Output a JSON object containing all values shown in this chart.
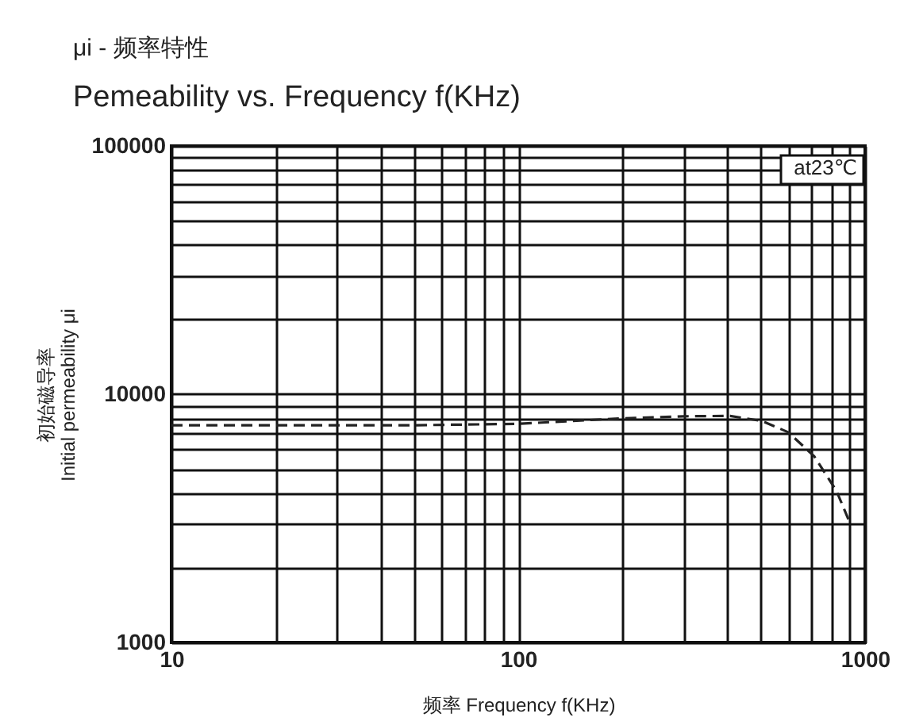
{
  "chart_data": {
    "type": "line",
    "title": "μi - 频率特性",
    "subtitle": "Pemeability vs. Frequency f(KHz)",
    "xlabel": "频率 Frequency f(KHz)",
    "ylabel": "初始磁导率\nInitial permeability μi",
    "annotations": [
      "at23℃"
    ],
    "x": [
      10,
      20,
      50,
      100,
      200,
      300,
      408,
      505,
      600,
      713,
      827,
      900
    ],
    "series": [
      {
        "color": "#222222",
        "values": [
          7500,
          7500,
          7500,
          7600,
          8000,
          8150,
          8180,
          7800,
          7030,
          5630,
          4080,
          3080
        ]
      }
    ],
    "log": "xy",
    "line_style": "dashed",
    "marker": "none",
    "grid": true,
    "xlim": [
      10,
      1000
    ],
    "xticks": [
      10,
      {
        "value": 20,
        "label": null
      },
      {
        "value": 30,
        "label": null
      },
      {
        "value": 40,
        "label": null
      },
      {
        "value": 50,
        "label": null
      },
      {
        "value": 60,
        "label": null
      },
      {
        "value": 70,
        "label": null
      },
      {
        "value": 80,
        "label": null
      },
      {
        "value": 90,
        "label": null
      },
      100,
      {
        "value": 200,
        "label": null
      },
      {
        "value": 300,
        "label": null
      },
      {
        "value": 400,
        "label": null
      },
      {
        "value": 500,
        "label": null
      },
      {
        "value": 600,
        "label": null
      },
      {
        "value": 700,
        "label": null
      },
      {
        "value": 800,
        "label": null
      },
      {
        "value": 900,
        "label": null
      },
      1000
    ],
    "ylim": [
      1000,
      100000
    ],
    "yticks": [
      1000,
      {
        "value": 2000,
        "label": null
      },
      {
        "value": 3000,
        "label": null
      },
      {
        "value": 4000,
        "label": null
      },
      {
        "value": 5000,
        "label": null
      },
      {
        "value": 6000,
        "label": null
      },
      {
        "value": 7000,
        "label": null
      },
      {
        "value": 8000,
        "label": null
      },
      {
        "value": 9000,
        "label": null
      },
      10000,
      {
        "value": 20000,
        "label": null
      },
      {
        "value": 30000,
        "label": null
      },
      {
        "value": 40000,
        "label": null
      },
      {
        "value": 50000,
        "label": null
      },
      {
        "value": 60000,
        "label": null
      },
      {
        "value": 70000,
        "label": null
      },
      {
        "value": 80000,
        "label": null
      },
      {
        "value": 90000,
        "label": null
      },
      100000
    ]
  }
}
